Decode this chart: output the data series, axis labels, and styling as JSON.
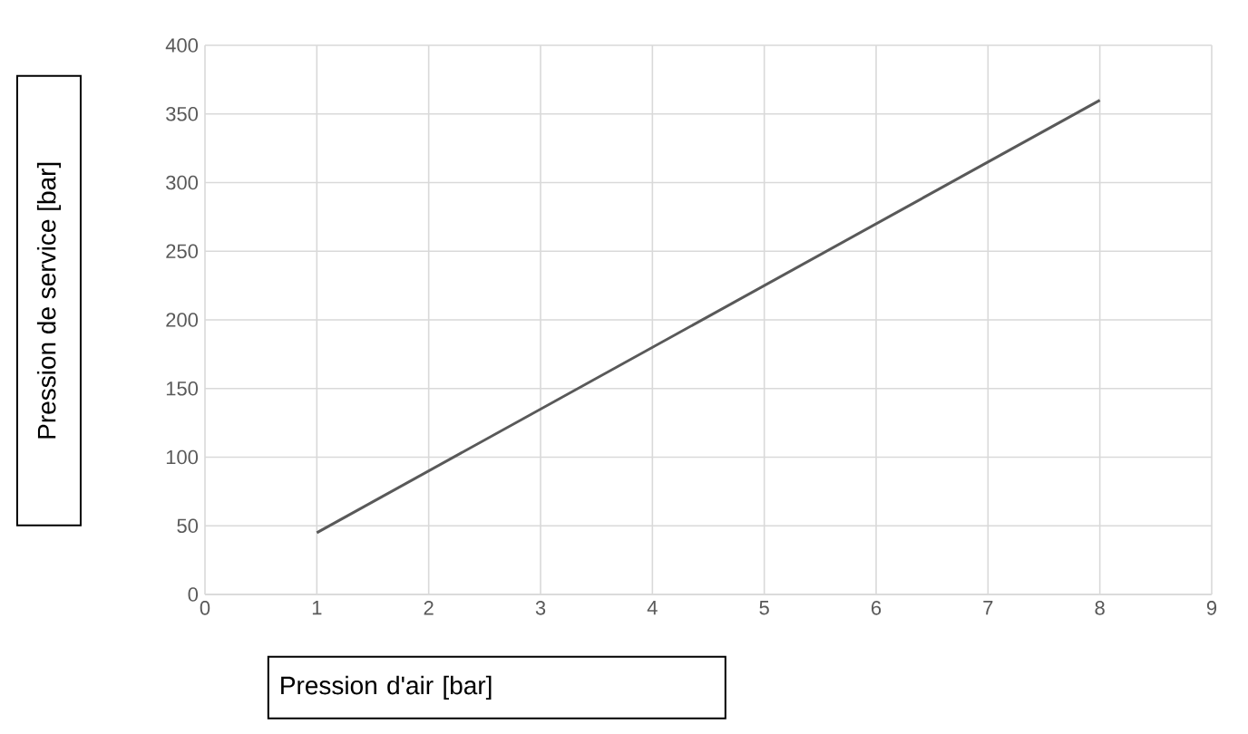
{
  "chart_data": {
    "type": "line",
    "xlabel": "Pression d'air [bar]",
    "ylabel": "Pression de service [bar]",
    "x": [
      1,
      8
    ],
    "series": [
      {
        "color": "#595959",
        "values": [
          45,
          360
        ]
      }
    ],
    "xlim": [
      0,
      9
    ],
    "xticks": [
      0,
      1,
      2,
      3,
      4,
      5,
      6,
      7,
      8,
      9
    ],
    "ylim": [
      0,
      400
    ],
    "yticks": [
      0,
      50,
      100,
      150,
      200,
      250,
      300,
      350,
      400
    ],
    "grid": true,
    "marker": "none",
    "line_style": "solid"
  }
}
